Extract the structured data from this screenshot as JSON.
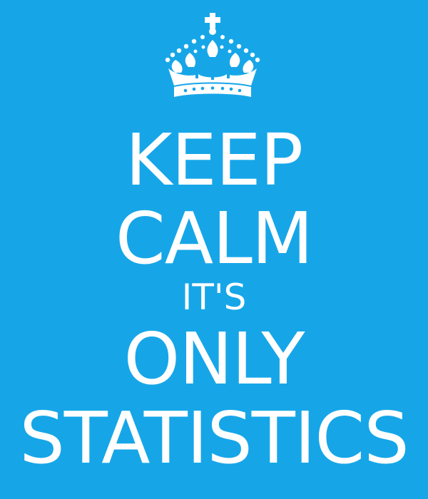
{
  "poster": {
    "background_color": "#16a6e8",
    "text_color": "#ffffff",
    "emblem": "crown-icon",
    "lines": [
      "KEEP",
      "CALM",
      "IT'S",
      "ONLY",
      "STATISTICS"
    ]
  }
}
